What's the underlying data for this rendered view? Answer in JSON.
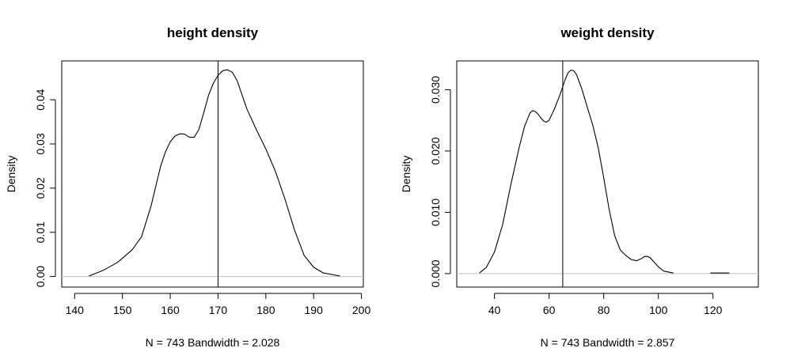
{
  "chart_data": [
    {
      "type": "line",
      "title": "height density",
      "xlabel": "N = 743   Bandwidth = 2.028",
      "ylabel": "Density",
      "xlim": [
        137.3,
        200.4
      ],
      "ylim": [
        -0.0024,
        0.0488
      ],
      "xticks": [
        140,
        150,
        160,
        170,
        180,
        190,
        200
      ],
      "yticks": [
        0.0,
        0.01,
        0.02,
        0.03,
        0.04
      ],
      "ytick_labels": [
        "0.00",
        "0.01",
        "0.02",
        "0.03",
        "0.04"
      ],
      "vline": 170,
      "baseline": 0,
      "grid": false,
      "series": [
        {
          "x": [
            143,
            146,
            149,
            152,
            154,
            156,
            157,
            158,
            159,
            160,
            161,
            162,
            163,
            164,
            165,
            166,
            167,
            168,
            169,
            170,
            171,
            172,
            173,
            174,
            175,
            176,
            178,
            180,
            182,
            184,
            186,
            188,
            190,
            192,
            195.5
          ],
          "y": [
            0.0001,
            0.0014,
            0.0032,
            0.006,
            0.009,
            0.016,
            0.0205,
            0.025,
            0.0282,
            0.0305,
            0.0318,
            0.0323,
            0.0322,
            0.0315,
            0.0315,
            0.0333,
            0.037,
            0.041,
            0.0437,
            0.0455,
            0.0466,
            0.0468,
            0.0462,
            0.0443,
            0.0412,
            0.038,
            0.0333,
            0.0289,
            0.0238,
            0.0175,
            0.0105,
            0.0048,
            0.0021,
            0.0008,
            0.0001
          ]
        }
      ]
    },
    {
      "type": "line",
      "title": "weight density",
      "xlabel": "N = 743   Bandwidth = 2.857",
      "ylabel": "Density",
      "xlim": [
        26.2,
        136.6
      ],
      "ylim": [
        -0.0022,
        0.0347
      ],
      "xticks": [
        40,
        60,
        80,
        100,
        120
      ],
      "yticks": [
        0.0,
        0.01,
        0.02,
        0.03
      ],
      "ytick_labels": [
        "0.000",
        "0.010",
        "0.020",
        "0.030"
      ],
      "vline": 65,
      "baseline": 0,
      "grid": false,
      "series": [
        {
          "x": [
            34.5,
            37,
            40,
            43,
            46,
            49,
            51,
            53,
            54,
            55,
            56,
            57,
            58,
            59,
            60,
            62,
            64,
            66,
            67,
            68,
            69,
            70,
            72,
            74,
            76,
            78,
            80,
            82,
            84,
            86,
            88,
            90,
            92,
            94,
            95,
            96,
            97,
            98,
            100,
            102,
            105.5
          ],
          "y": [
            0.0001,
            0.001,
            0.0035,
            0.008,
            0.0145,
            0.0205,
            0.024,
            0.0262,
            0.0266,
            0.0264,
            0.026,
            0.0254,
            0.0249,
            0.0247,
            0.025,
            0.0269,
            0.0292,
            0.0318,
            0.0328,
            0.0332,
            0.0331,
            0.0325,
            0.0301,
            0.0271,
            0.0242,
            0.0205,
            0.0156,
            0.0104,
            0.0062,
            0.0039,
            0.003,
            0.0023,
            0.0021,
            0.0025,
            0.0028,
            0.0028,
            0.0026,
            0.0021,
            0.0011,
            0.0004,
            0.0001
          ]
        },
        {
          "x": [
            119,
            122,
            126
          ],
          "y": [
            0.0001,
            0.0001,
            0.0001
          ]
        }
      ]
    }
  ]
}
